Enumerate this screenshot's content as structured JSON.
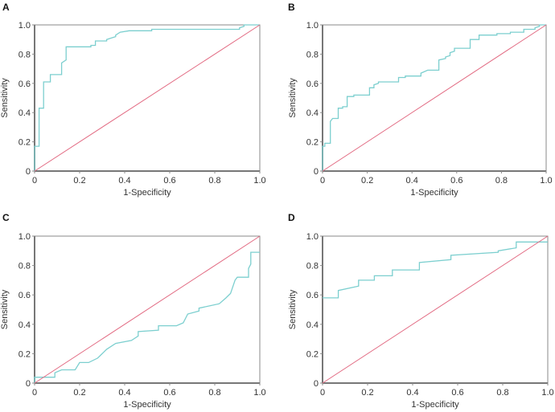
{
  "colors": {
    "curve": "#7ccfcf",
    "diagonal": "#e26a82",
    "axis": "#8a8a8a"
  },
  "chart_data": [
    {
      "panel": "A",
      "type": "line",
      "xlabel": "1-Specificity",
      "ylabel": "Sensitivity",
      "xlim": [
        0,
        1
      ],
      "ylim": [
        0,
        1
      ],
      "xticks": [
        "0",
        "0.2",
        "0.4",
        "0.6",
        "0.8",
        "1.0"
      ],
      "yticks": [
        "0",
        "0.2",
        "0.4",
        "0.6",
        "0.8",
        "1.0"
      ],
      "series": [
        {
          "name": "ROC",
          "points": [
            [
              0,
              0
            ],
            [
              0,
              0.17
            ],
            [
              0.02,
              0.17
            ],
            [
              0.02,
              0.43
            ],
            [
              0.04,
              0.43
            ],
            [
              0.04,
              0.61
            ],
            [
              0.07,
              0.61
            ],
            [
              0.07,
              0.66
            ],
            [
              0.12,
              0.66
            ],
            [
              0.12,
              0.74
            ],
            [
              0.14,
              0.76
            ],
            [
              0.14,
              0.85
            ],
            [
              0.25,
              0.85
            ],
            [
              0.25,
              0.86
            ],
            [
              0.27,
              0.86
            ],
            [
              0.27,
              0.89
            ],
            [
              0.32,
              0.89
            ],
            [
              0.32,
              0.9
            ],
            [
              0.34,
              0.91
            ],
            [
              0.36,
              0.92
            ],
            [
              0.36,
              0.93
            ],
            [
              0.38,
              0.95
            ],
            [
              0.42,
              0.96
            ],
            [
              0.52,
              0.96
            ],
            [
              0.52,
              0.97
            ],
            [
              0.91,
              0.97
            ],
            [
              0.91,
              0.98
            ],
            [
              0.93,
              0.99
            ],
            [
              0.93,
              1
            ],
            [
              1,
              1
            ]
          ]
        },
        {
          "name": "reference",
          "points": [
            [
              0,
              0
            ],
            [
              1,
              1
            ]
          ]
        }
      ]
    },
    {
      "panel": "B",
      "type": "line",
      "xlabel": "1-Specificity",
      "ylabel": "Sensitivity",
      "xlim": [
        0,
        1
      ],
      "ylim": [
        0,
        1
      ],
      "xticks": [
        "0",
        "0.2",
        "0.4",
        "0.6",
        "0.8",
        "1.0"
      ],
      "yticks": [
        "0",
        "0.2",
        "0.4",
        "0.6",
        "0.8",
        "1.0"
      ],
      "series": [
        {
          "name": "ROC",
          "points": [
            [
              0,
              0
            ],
            [
              0,
              0.17
            ],
            [
              0.01,
              0.17
            ],
            [
              0.01,
              0.19
            ],
            [
              0.035,
              0.19
            ],
            [
              0.035,
              0.34
            ],
            [
              0.045,
              0.36
            ],
            [
              0.07,
              0.36
            ],
            [
              0.07,
              0.43
            ],
            [
              0.09,
              0.43
            ],
            [
              0.09,
              0.44
            ],
            [
              0.11,
              0.44
            ],
            [
              0.11,
              0.51
            ],
            [
              0.14,
              0.51
            ],
            [
              0.14,
              0.52
            ],
            [
              0.21,
              0.52
            ],
            [
              0.21,
              0.57
            ],
            [
              0.23,
              0.57
            ],
            [
              0.23,
              0.59
            ],
            [
              0.25,
              0.6
            ],
            [
              0.25,
              0.61
            ],
            [
              0.34,
              0.61
            ],
            [
              0.34,
              0.64
            ],
            [
              0.37,
              0.64
            ],
            [
              0.37,
              0.65
            ],
            [
              0.44,
              0.65
            ],
            [
              0.44,
              0.67
            ],
            [
              0.47,
              0.69
            ],
            [
              0.52,
              0.69
            ],
            [
              0.52,
              0.76
            ],
            [
              0.55,
              0.77
            ],
            [
              0.55,
              0.78
            ],
            [
              0.57,
              0.79
            ],
            [
              0.57,
              0.81
            ],
            [
              0.59,
              0.82
            ],
            [
              0.59,
              0.84
            ],
            [
              0.66,
              0.84
            ],
            [
              0.66,
              0.9
            ],
            [
              0.7,
              0.9
            ],
            [
              0.7,
              0.93
            ],
            [
              0.78,
              0.93
            ],
            [
              0.78,
              0.94
            ],
            [
              0.84,
              0.94
            ],
            [
              0.84,
              0.95
            ],
            [
              0.9,
              0.95
            ],
            [
              0.9,
              0.97
            ],
            [
              0.95,
              0.97
            ],
            [
              0.95,
              0.98
            ],
            [
              0.97,
              0.99
            ],
            [
              0.97,
              1
            ],
            [
              1,
              1
            ]
          ]
        },
        {
          "name": "reference",
          "points": [
            [
              0,
              0
            ],
            [
              1,
              1
            ]
          ]
        }
      ]
    },
    {
      "panel": "C",
      "type": "line",
      "xlabel": "1-Specificity",
      "ylabel": "Sensitivity",
      "xlim": [
        0,
        1
      ],
      "ylim": [
        0,
        1
      ],
      "xticks": [
        "0",
        "0.2",
        "0.4",
        "0.6",
        "0.8",
        "1.0"
      ],
      "yticks": [
        "0",
        "0.2",
        "0.4",
        "0.6",
        "0.8",
        "1.0"
      ],
      "series": [
        {
          "name": "ROC",
          "points": [
            [
              0,
              0
            ],
            [
              0,
              0.04
            ],
            [
              0.09,
              0.04
            ],
            [
              0.09,
              0.07
            ],
            [
              0.12,
              0.09
            ],
            [
              0.18,
              0.09
            ],
            [
              0.2,
              0.14
            ],
            [
              0.24,
              0.14
            ],
            [
              0.28,
              0.17
            ],
            [
              0.32,
              0.23
            ],
            [
              0.36,
              0.27
            ],
            [
              0.43,
              0.29
            ],
            [
              0.46,
              0.32
            ],
            [
              0.46,
              0.35
            ],
            [
              0.55,
              0.36
            ],
            [
              0.55,
              0.39
            ],
            [
              0.63,
              0.39
            ],
            [
              0.66,
              0.41
            ],
            [
              0.68,
              0.47
            ],
            [
              0.73,
              0.49
            ],
            [
              0.73,
              0.51
            ],
            [
              0.82,
              0.54
            ],
            [
              0.85,
              0.58
            ],
            [
              0.87,
              0.61
            ],
            [
              0.89,
              0.7
            ],
            [
              0.9,
              0.72
            ],
            [
              0.95,
              0.72
            ],
            [
              0.95,
              0.78
            ],
            [
              0.96,
              0.81
            ],
            [
              0.96,
              0.89
            ],
            [
              1,
              0.89
            ]
          ]
        },
        {
          "name": "reference",
          "points": [
            [
              0,
              0
            ],
            [
              1,
              1
            ]
          ]
        }
      ]
    },
    {
      "panel": "D",
      "type": "line",
      "xlabel": "1-Specificity",
      "ylabel": "Sensitivity",
      "xlim": [
        0,
        1
      ],
      "ylim": [
        0,
        1
      ],
      "xticks": [
        "0",
        "0.2",
        "0.4",
        "0.6",
        "0.8",
        "1.0"
      ],
      "yticks": [
        "0",
        "0.2",
        "0.4",
        "0.6",
        "0.8",
        "1.0"
      ],
      "series": [
        {
          "name": "ROC",
          "points": [
            [
              0,
              0.58
            ],
            [
              0.07,
              0.58
            ],
            [
              0.07,
              0.63
            ],
            [
              0.16,
              0.66
            ],
            [
              0.16,
              0.7
            ],
            [
              0.23,
              0.7
            ],
            [
              0.23,
              0.73
            ],
            [
              0.31,
              0.73
            ],
            [
              0.31,
              0.77
            ],
            [
              0.43,
              0.77
            ],
            [
              0.43,
              0.82
            ],
            [
              0.57,
              0.84
            ],
            [
              0.57,
              0.87
            ],
            [
              0.78,
              0.89
            ],
            [
              0.78,
              0.9
            ],
            [
              0.86,
              0.92
            ],
            [
              0.86,
              0.96
            ],
            [
              1,
              0.96
            ]
          ]
        },
        {
          "name": "reference",
          "points": [
            [
              0,
              0
            ],
            [
              1,
              1
            ]
          ]
        }
      ]
    }
  ]
}
